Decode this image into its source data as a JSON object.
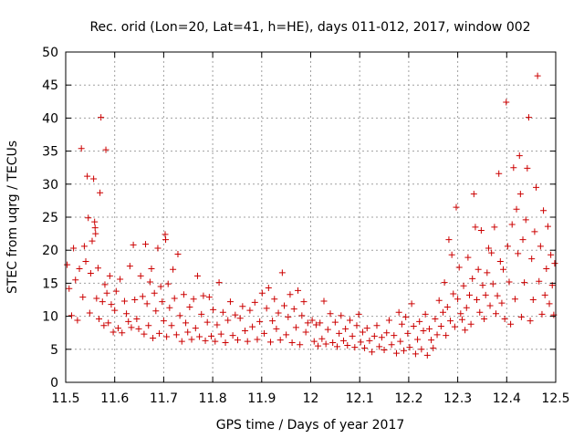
{
  "chart_data": {
    "type": "scatter",
    "title": "Rec. orid (Lon=20, Lat=41, h=HE), days 011-012, 2017, window 002",
    "xlabel": "GPS time / Days of year 2017",
    "ylabel": "STEC from uqrg / TECUs",
    "xlim": [
      11.5,
      12.5
    ],
    "ylim": [
      0,
      50
    ],
    "xticks": [
      "11.5",
      "11.6",
      "11.7",
      "11.8",
      "11.9",
      "12",
      "12.1",
      "12.2",
      "12.3",
      "12.4",
      "12.5"
    ],
    "yticks": [
      "0",
      "5",
      "10",
      "15",
      "20",
      "25",
      "30",
      "35",
      "40",
      "45",
      "50"
    ],
    "grid": true,
    "marker": "plus",
    "colors": {
      "marker": "#cc0000",
      "grid": "#a0a0a0",
      "axis": "#000000"
    },
    "series": [
      {
        "name": "STEC",
        "points": [
          [
            11.503,
            17.8
          ],
          [
            11.507,
            14.2
          ],
          [
            11.512,
            10.1
          ],
          [
            11.516,
            20.3
          ],
          [
            11.52,
            15.5
          ],
          [
            11.524,
            9.4
          ],
          [
            11.528,
            17.2
          ],
          [
            11.532,
            35.4
          ],
          [
            11.535,
            12.9
          ],
          [
            11.538,
            20.6
          ],
          [
            11.541,
            18.3
          ],
          [
            11.544,
            31.2
          ],
          [
            11.546,
            24.9
          ],
          [
            11.549,
            10.5
          ],
          [
            11.551,
            16.5
          ],
          [
            11.554,
            21.4
          ],
          [
            11.557,
            30.8
          ],
          [
            11.559,
            24.3
          ],
          [
            11.56,
            23.4
          ],
          [
            11.561,
            22.5
          ],
          [
            11.563,
            12.7
          ],
          [
            11.566,
            17.3
          ],
          [
            11.568,
            9.6
          ],
          [
            11.57,
            28.7
          ],
          [
            11.572,
            40.1
          ],
          [
            11.575,
            12.2
          ],
          [
            11.578,
            8.6
          ],
          [
            11.58,
            14.8
          ],
          [
            11.582,
            35.2
          ],
          [
            11.584,
            13.5
          ],
          [
            11.587,
            9.0
          ],
          [
            11.59,
            16.1
          ],
          [
            11.593,
            11.8
          ],
          [
            11.597,
            7.6
          ],
          [
            11.6,
            10.9
          ],
          [
            11.603,
            13.8
          ],
          [
            11.607,
            8.2
          ],
          [
            11.611,
            15.6
          ],
          [
            11.615,
            7.5
          ],
          [
            11.62,
            12.3
          ],
          [
            11.624,
            10.4
          ],
          [
            11.628,
            9.2
          ],
          [
            11.631,
            17.6
          ],
          [
            11.634,
            8.3
          ],
          [
            11.638,
            20.8
          ],
          [
            11.641,
            12.5
          ],
          [
            11.645,
            9.6
          ],
          [
            11.649,
            8.1
          ],
          [
            11.653,
            16.1
          ],
          [
            11.657,
            13.0
          ],
          [
            11.66,
            7.3
          ],
          [
            11.663,
            20.9
          ],
          [
            11.666,
            11.9
          ],
          [
            11.669,
            8.6
          ],
          [
            11.672,
            15.2
          ],
          [
            11.675,
            17.2
          ],
          [
            11.678,
            6.7
          ],
          [
            11.681,
            13.5
          ],
          [
            11.684,
            10.8
          ],
          [
            11.688,
            20.3
          ],
          [
            11.691,
            7.4
          ],
          [
            11.694,
            14.5
          ],
          [
            11.697,
            12.2
          ],
          [
            11.7,
            9.3
          ],
          [
            11.703,
            22.4
          ],
          [
            11.704,
            21.6
          ],
          [
            11.706,
            6.9
          ],
          [
            11.709,
            14.9
          ],
          [
            11.712,
            11.3
          ],
          [
            11.716,
            8.6
          ],
          [
            11.719,
            17.1
          ],
          [
            11.722,
            12.7
          ],
          [
            11.726,
            7.2
          ],
          [
            11.729,
            19.4
          ],
          [
            11.733,
            10.1
          ],
          [
            11.737,
            6.2
          ],
          [
            11.741,
            13.3
          ],
          [
            11.745,
            9.0
          ],
          [
            11.749,
            7.6
          ],
          [
            11.753,
            11.4
          ],
          [
            11.757,
            6.5
          ],
          [
            11.761,
            12.6
          ],
          [
            11.765,
            8.2
          ],
          [
            11.769,
            16.1
          ],
          [
            11.773,
            6.9
          ],
          [
            11.777,
            10.3
          ],
          [
            11.781,
            13.1
          ],
          [
            11.785,
            6.3
          ],
          [
            11.789,
            9.1
          ],
          [
            11.793,
            12.9
          ],
          [
            11.797,
            7.0
          ],
          [
            11.801,
            11.0
          ],
          [
            11.805,
            6.2
          ],
          [
            11.809,
            8.7
          ],
          [
            11.813,
            15.1
          ],
          [
            11.817,
            7.3
          ],
          [
            11.821,
            10.6
          ],
          [
            11.826,
            6.0
          ],
          [
            11.831,
            9.4
          ],
          [
            11.836,
            12.2
          ],
          [
            11.841,
            7.1
          ],
          [
            11.846,
            10.2
          ],
          [
            11.851,
            6.4
          ],
          [
            11.856,
            9.7
          ],
          [
            11.861,
            11.5
          ],
          [
            11.866,
            7.8
          ],
          [
            11.871,
            6.2
          ],
          [
            11.876,
            10.9
          ],
          [
            11.881,
            8.4
          ],
          [
            11.886,
            12.1
          ],
          [
            11.891,
            6.5
          ],
          [
            11.896,
            9.2
          ],
          [
            11.901,
            13.5
          ],
          [
            11.905,
            7.4
          ],
          [
            11.91,
            11.2
          ],
          [
            11.914,
            14.3
          ],
          [
            11.918,
            6.1
          ],
          [
            11.922,
            9.3
          ],
          [
            11.926,
            12.6
          ],
          [
            11.93,
            8.1
          ],
          [
            11.934,
            10.5
          ],
          [
            11.938,
            6.4
          ],
          [
            11.942,
            16.6
          ],
          [
            11.946,
            11.6
          ],
          [
            11.95,
            7.2
          ],
          [
            11.954,
            9.9
          ],
          [
            11.958,
            13.3
          ],
          [
            11.962,
            6.0
          ],
          [
            11.966,
            11.1
          ],
          [
            11.97,
            8.3
          ],
          [
            11.974,
            13.9
          ],
          [
            11.978,
            5.7
          ],
          [
            11.982,
            10.1
          ],
          [
            11.986,
            12.2
          ],
          [
            11.99,
            7.6
          ],
          [
            11.994,
            9.0
          ],
          [
            12.003,
            9.4
          ],
          [
            12.007,
            6.2
          ],
          [
            12.011,
            8.7
          ],
          [
            12.015,
            5.5
          ],
          [
            12.019,
            9.0
          ],
          [
            12.023,
            6.6
          ],
          [
            12.027,
            12.3
          ],
          [
            12.031,
            5.8
          ],
          [
            12.035,
            8.0
          ],
          [
            12.04,
            10.4
          ],
          [
            12.045,
            6.0
          ],
          [
            12.05,
            9.1
          ],
          [
            12.054,
            5.4
          ],
          [
            12.058,
            7.4
          ],
          [
            12.062,
            10.1
          ],
          [
            12.067,
            6.3
          ],
          [
            12.071,
            8.1
          ],
          [
            12.075,
            5.6
          ],
          [
            12.08,
            9.4
          ],
          [
            12.085,
            7.0
          ],
          [
            12.09,
            5.3
          ],
          [
            12.094,
            8.6
          ],
          [
            12.098,
            10.3
          ],
          [
            12.102,
            6.1
          ],
          [
            12.106,
            7.6
          ],
          [
            12.11,
            5.2
          ],
          [
            12.115,
            8.2
          ],
          [
            12.12,
            6.3
          ],
          [
            12.125,
            4.6
          ],
          [
            12.13,
            7.0
          ],
          [
            12.135,
            8.6
          ],
          [
            12.14,
            5.4
          ],
          [
            12.145,
            6.8
          ],
          [
            12.15,
            4.9
          ],
          [
            12.155,
            7.5
          ],
          [
            12.16,
            9.4
          ],
          [
            12.165,
            5.7
          ],
          [
            12.17,
            7.1
          ],
          [
            12.175,
            4.4
          ],
          [
            12.18,
            10.6
          ],
          [
            12.183,
            6.2
          ],
          [
            12.186,
            8.8
          ],
          [
            12.19,
            4.8
          ],
          [
            12.194,
            9.9
          ],
          [
            12.198,
            7.4
          ],
          [
            12.202,
            5.3
          ],
          [
            12.206,
            11.9
          ],
          [
            12.21,
            8.5
          ],
          [
            12.214,
            4.3
          ],
          [
            12.218,
            6.5
          ],
          [
            12.222,
            9.2
          ],
          [
            12.226,
            5.0
          ],
          [
            12.23,
            7.8
          ],
          [
            12.234,
            10.3
          ],
          [
            12.238,
            4.1
          ],
          [
            12.242,
            8.1
          ],
          [
            12.246,
            6.4
          ],
          [
            12.25,
            5.2
          ],
          [
            12.254,
            9.6
          ],
          [
            12.258,
            7.2
          ],
          [
            12.262,
            12.4
          ],
          [
            12.266,
            8.5
          ],
          [
            12.27,
            10.6
          ],
          [
            12.273,
            15.1
          ],
          [
            12.276,
            7.1
          ],
          [
            12.279,
            11.4
          ],
          [
            12.282,
            21.6
          ],
          [
            12.285,
            9.3
          ],
          [
            12.288,
            19.3
          ],
          [
            12.291,
            13.4
          ],
          [
            12.294,
            8.4
          ],
          [
            12.297,
            26.5
          ],
          [
            12.3,
            12.6
          ],
          [
            12.303,
            17.4
          ],
          [
            12.306,
            10.4
          ],
          [
            12.309,
            9.5
          ],
          [
            12.312,
            14.6
          ],
          [
            12.315,
            7.9
          ],
          [
            12.318,
            11.3
          ],
          [
            12.321,
            18.9
          ],
          [
            12.324,
            13.2
          ],
          [
            12.327,
            8.8
          ],
          [
            12.33,
            15.7
          ],
          [
            12.333,
            28.5
          ],
          [
            12.336,
            23.5
          ],
          [
            12.339,
            12.5
          ],
          [
            12.342,
            17.1
          ],
          [
            12.345,
            10.6
          ],
          [
            12.348,
            23.0
          ],
          [
            12.351,
            14.7
          ],
          [
            12.354,
            9.6
          ],
          [
            12.357,
            13.2
          ],
          [
            12.36,
            16.6
          ],
          [
            12.363,
            20.3
          ],
          [
            12.366,
            11.6
          ],
          [
            12.369,
            19.6
          ],
          [
            12.372,
            14.9
          ],
          [
            12.375,
            23.5
          ],
          [
            12.378,
            10.4
          ],
          [
            12.381,
            13.1
          ],
          [
            12.384,
            31.6
          ],
          [
            12.387,
            18.3
          ],
          [
            12.39,
            12.0
          ],
          [
            12.393,
            17.1
          ],
          [
            12.396,
            9.6
          ],
          [
            12.399,
            42.4
          ],
          [
            12.402,
            20.6
          ],
          [
            12.405,
            15.2
          ],
          [
            12.408,
            8.8
          ],
          [
            12.411,
            23.9
          ],
          [
            12.414,
            32.5
          ],
          [
            12.417,
            12.6
          ],
          [
            12.42,
            26.2
          ],
          [
            12.423,
            19.5
          ],
          [
            12.426,
            34.3
          ],
          [
            12.428,
            28.5
          ],
          [
            12.43,
            9.9
          ],
          [
            12.433,
            21.6
          ],
          [
            12.436,
            15.1
          ],
          [
            12.439,
            24.6
          ],
          [
            12.442,
            32.4
          ],
          [
            12.445,
            40.1
          ],
          [
            12.448,
            9.3
          ],
          [
            12.451,
            18.7
          ],
          [
            12.454,
            12.5
          ],
          [
            12.457,
            22.8
          ],
          [
            12.46,
            29.5
          ],
          [
            12.463,
            46.4
          ],
          [
            12.466,
            15.3
          ],
          [
            12.469,
            20.6
          ],
          [
            12.472,
            10.3
          ],
          [
            12.475,
            26.0
          ],
          [
            12.478,
            13.2
          ],
          [
            12.481,
            17.2
          ],
          [
            12.484,
            23.6
          ],
          [
            12.487,
            11.9
          ],
          [
            12.49,
            19.3
          ],
          [
            12.493,
            14.7
          ],
          [
            12.496,
            10.2
          ],
          [
            12.498,
            18.0
          ]
        ]
      }
    ]
  }
}
